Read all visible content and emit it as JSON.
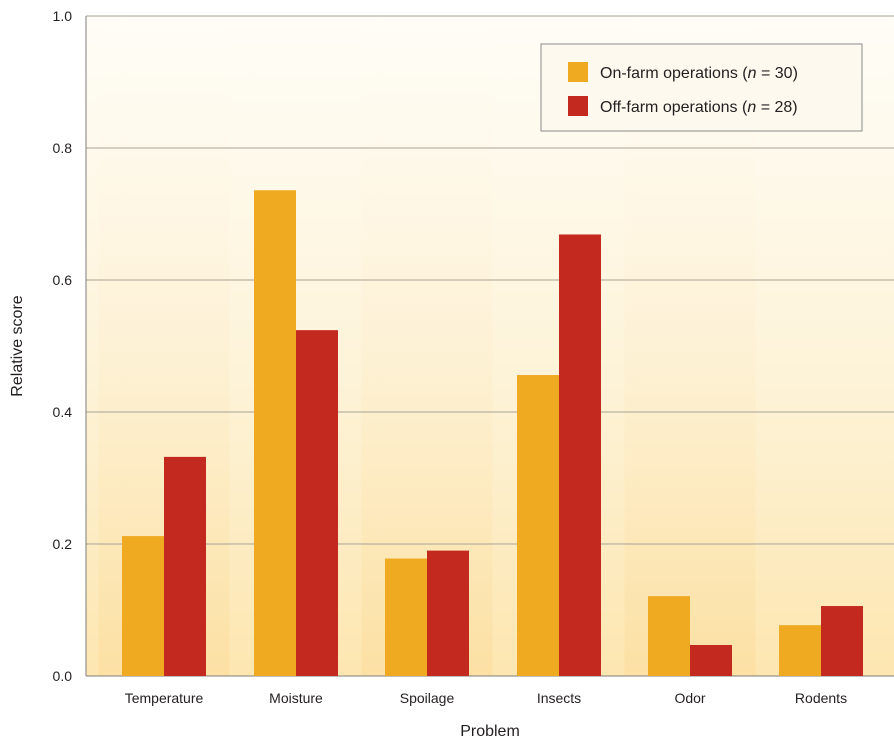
{
  "chart_data": {
    "type": "bar",
    "title": "",
    "xlabel": "Problem",
    "ylabel": "Relative score",
    "ylim": [
      0,
      1.0
    ],
    "yticks": [
      "0.0",
      "0.2",
      "0.4",
      "0.6",
      "0.8",
      "1.0"
    ],
    "categories": [
      "Temperature",
      "Moisture",
      "Spoilage",
      "Insects",
      "Odor",
      "Rodents"
    ],
    "series": [
      {
        "name": "On-farm operations",
        "n_label": "n",
        "n_value": "= 30)",
        "color": "#efaa22",
        "values": [
          0.212,
          0.736,
          0.178,
          0.456,
          0.121,
          0.077
        ]
      },
      {
        "name": "Off-farm operations",
        "n_label": "n",
        "n_value": "= 28)",
        "color": "#c4291f",
        "values": [
          0.332,
          0.524,
          0.19,
          0.669,
          0.047,
          0.106
        ]
      }
    ],
    "grid": true,
    "legend_position": "top-right",
    "background": "#fdf1cf"
  }
}
